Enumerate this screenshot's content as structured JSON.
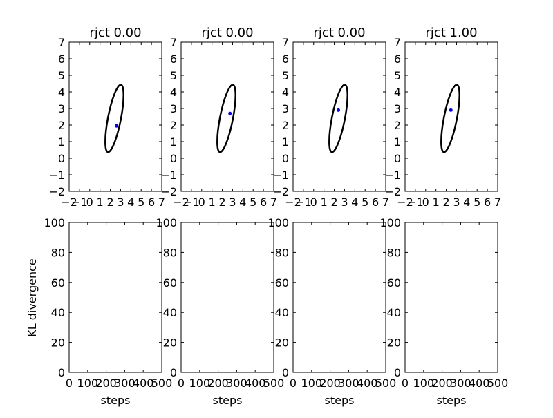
{
  "figure": {
    "ylabel_bottom": "KL divergence",
    "xlabel_bottom": "steps"
  },
  "chart_data": [
    {
      "type": "scatter",
      "title": "rjct  0.00",
      "xlim": [
        -2,
        7
      ],
      "ylim": [
        -2,
        7
      ],
      "xticks": [
        -2,
        -1,
        0,
        1,
        2,
        3,
        4,
        5,
        6,
        7
      ],
      "yticks": [
        -2,
        -1,
        0,
        1,
        2,
        3,
        4,
        5,
        6,
        7
      ],
      "xtick_labels": [
        "−2",
        "−1",
        "0",
        "1",
        "2",
        "3",
        "4",
        "5",
        "6",
        "7"
      ],
      "ytick_labels": [
        "−2",
        "−1",
        "0",
        "1",
        "2",
        "3",
        "4",
        "5",
        "6",
        "7"
      ],
      "ellipse": {
        "cx": 2.4,
        "cy": 2.4,
        "rx": 0.63,
        "ry": 2.07,
        "rotation_deg": 11,
        "color": "#000000"
      },
      "point": {
        "x": 2.6,
        "y": 1.95,
        "color": "#0000ff"
      }
    },
    {
      "type": "scatter",
      "title": "rjct  0.00",
      "xlim": [
        -2,
        7
      ],
      "ylim": [
        -2,
        7
      ],
      "xticks": [
        -2,
        -1,
        0,
        1,
        2,
        3,
        4,
        5,
        6,
        7
      ],
      "yticks": [
        -2,
        -1,
        0,
        1,
        2,
        3,
        4,
        5,
        6,
        7
      ],
      "xtick_labels": [
        "−2",
        "−1",
        "0",
        "1",
        "2",
        "3",
        "4",
        "5",
        "6",
        "7"
      ],
      "ytick_labels": [
        "−2",
        "−1",
        "0",
        "1",
        "2",
        "3",
        "4",
        "5",
        "6",
        "7"
      ],
      "ellipse": {
        "cx": 2.4,
        "cy": 2.4,
        "rx": 0.63,
        "ry": 2.07,
        "rotation_deg": 11,
        "color": "#000000"
      },
      "point": {
        "x": 2.75,
        "y": 2.7,
        "color": "#0000ff"
      }
    },
    {
      "type": "scatter",
      "title": "rjct  0.00",
      "xlim": [
        -2,
        7
      ],
      "ylim": [
        -2,
        7
      ],
      "xticks": [
        -2,
        -1,
        0,
        1,
        2,
        3,
        4,
        5,
        6,
        7
      ],
      "yticks": [
        -2,
        -1,
        0,
        1,
        2,
        3,
        4,
        5,
        6,
        7
      ],
      "xtick_labels": [
        "−2",
        "−1",
        "0",
        "1",
        "2",
        "3",
        "4",
        "5",
        "6",
        "7"
      ],
      "ytick_labels": [
        "−2",
        "−1",
        "0",
        "1",
        "2",
        "3",
        "4",
        "5",
        "6",
        "7"
      ],
      "ellipse": {
        "cx": 2.4,
        "cy": 2.4,
        "rx": 0.63,
        "ry": 2.07,
        "rotation_deg": 11,
        "color": "#000000"
      },
      "point": {
        "x": 2.4,
        "y": 2.9,
        "color": "#0000ff"
      }
    },
    {
      "type": "scatter",
      "title": "rjct  1.00",
      "xlim": [
        -2,
        7
      ],
      "ylim": [
        -2,
        7
      ],
      "xticks": [
        -2,
        -1,
        0,
        1,
        2,
        3,
        4,
        5,
        6,
        7
      ],
      "yticks": [
        -2,
        -1,
        0,
        1,
        2,
        3,
        4,
        5,
        6,
        7
      ],
      "xtick_labels": [
        "−2",
        "−1",
        "0",
        "1",
        "2",
        "3",
        "4",
        "5",
        "6",
        "7"
      ],
      "ytick_labels": [
        "−2",
        "−1",
        "0",
        "1",
        "2",
        "3",
        "4",
        "5",
        "6",
        "7"
      ],
      "ellipse": {
        "cx": 2.4,
        "cy": 2.4,
        "rx": 0.63,
        "ry": 2.07,
        "rotation_deg": 11,
        "color": "#000000"
      },
      "point": {
        "x": 2.45,
        "y": 2.9,
        "color": "#0000ff"
      }
    },
    {
      "type": "line",
      "xlabel": "steps",
      "ylabel": "KL divergence",
      "xlim": [
        0,
        500
      ],
      "ylim": [
        0,
        100
      ],
      "xticks": [
        0,
        100,
        200,
        300,
        400,
        500
      ],
      "yticks": [
        0,
        20,
        40,
        60,
        80,
        100
      ],
      "series": []
    },
    {
      "type": "line",
      "xlabel": "steps",
      "ylabel": "",
      "xlim": [
        0,
        500
      ],
      "ylim": [
        0,
        100
      ],
      "xticks": [
        0,
        100,
        200,
        300,
        400,
        500
      ],
      "yticks": [
        0,
        20,
        40,
        60,
        80,
        100
      ],
      "series": []
    },
    {
      "type": "line",
      "xlabel": "steps",
      "ylabel": "",
      "xlim": [
        0,
        500
      ],
      "ylim": [
        0,
        100
      ],
      "xticks": [
        0,
        100,
        200,
        300,
        400,
        500
      ],
      "yticks": [
        0,
        20,
        40,
        60,
        80,
        100
      ],
      "series": []
    },
    {
      "type": "line",
      "xlabel": "steps",
      "ylabel": "",
      "xlim": [
        0,
        500
      ],
      "ylim": [
        0,
        100
      ],
      "xticks": [
        0,
        100,
        200,
        300,
        400,
        500
      ],
      "yticks": [
        0,
        20,
        40,
        60,
        80,
        100
      ],
      "series": []
    }
  ]
}
